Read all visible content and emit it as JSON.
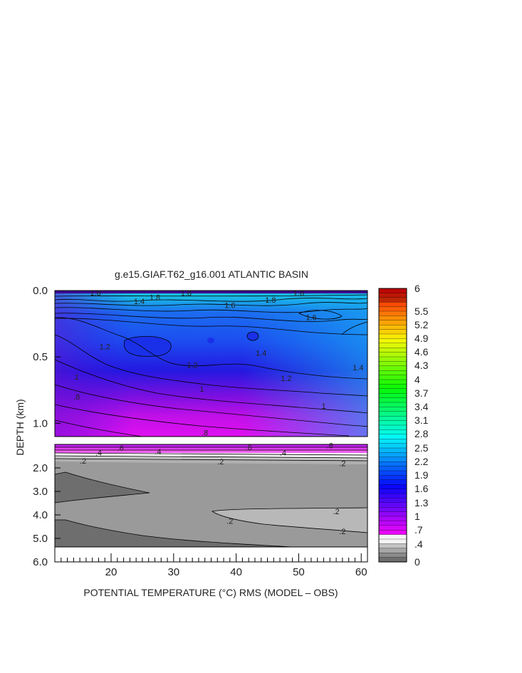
{
  "chart_data": {
    "type": "heatmap",
    "title": "g.e15.GIAF.T62_g16.001 ATLANTIC BASIN",
    "xlabel": "POTENTIAL TEMPERATURE (°C) RMS (MODEL – OBS)",
    "ylabel": "DEPTH (km)",
    "x_ticks": [
      20,
      30,
      40,
      50,
      60
    ],
    "xlim": [
      11,
      61
    ],
    "upper_panel": {
      "ylim": [
        0.0,
        1.1
      ],
      "y_ticks": [
        "0.0",
        "0.5",
        "1.0"
      ],
      "contour_labels": [
        {
          "text": "1.8",
          "x": 17.5,
          "y": 0.015
        },
        {
          "text": "1.8",
          "x": 32,
          "y": 0.02
        },
        {
          "text": "1.6",
          "x": 50,
          "y": 0.02
        },
        {
          "text": "1.8",
          "x": 27,
          "y": 0.05
        },
        {
          "text": "1.8",
          "x": 45.5,
          "y": 0.07
        },
        {
          "text": "1.4",
          "x": 24.5,
          "y": 0.08
        },
        {
          "text": "1.6",
          "x": 39,
          "y": 0.11
        },
        {
          "text": "1.6",
          "x": 52,
          "y": 0.2
        },
        {
          "text": "1.2",
          "x": 19,
          "y": 0.42
        },
        {
          "text": "1.4",
          "x": 44,
          "y": 0.47
        },
        {
          "text": "1.2",
          "x": 33,
          "y": 0.56
        },
        {
          "text": "1.4",
          "x": 59.5,
          "y": 0.58
        },
        {
          "text": "1.2",
          "x": 48,
          "y": 0.66
        },
        {
          "text": "1",
          "x": 14.5,
          "y": 0.65
        },
        {
          "text": "1",
          "x": 34.5,
          "y": 0.74
        },
        {
          "text": "1",
          "x": 54,
          "y": 0.87
        },
        {
          "text": ".8",
          "x": 14.5,
          "y": 0.8
        },
        {
          "text": ".8",
          "x": 35,
          "y": 1.07
        }
      ]
    },
    "lower_panel": {
      "ylim": [
        1.0,
        6.0
      ],
      "y_ticks": [
        "2.0",
        "3.0",
        "4.0",
        "5.0",
        "6.0"
      ],
      "contour_labels": [
        {
          "text": ".6",
          "x": 21.5,
          "y": 1.15
        },
        {
          "text": ".6",
          "x": 42,
          "y": 1.12
        },
        {
          "text": ".6",
          "x": 55,
          "y": 1.05
        },
        {
          "text": ".4",
          "x": 18,
          "y": 1.35
        },
        {
          "text": ".4",
          "x": 27.5,
          "y": 1.3
        },
        {
          "text": ".4",
          "x": 47.5,
          "y": 1.35
        },
        {
          "text": ".2",
          "x": 15.5,
          "y": 1.7
        },
        {
          "text": ".2",
          "x": 37.5,
          "y": 1.72
        },
        {
          "text": ".2",
          "x": 57,
          "y": 1.8
        },
        {
          "text": ".2",
          "x": 56,
          "y": 3.85
        },
        {
          "text": ".2",
          "x": 39,
          "y": 4.25
        },
        {
          "text": ".2",
          "x": 57,
          "y": 4.7
        }
      ]
    },
    "colorbar": {
      "labels": [
        "6",
        "5.5",
        "5.2",
        "4.9",
        "4.6",
        "4.3",
        "4",
        "3.7",
        "3.4",
        "3.1",
        "2.8",
        "2.5",
        "2.2",
        "1.9",
        "1.6",
        "1.3",
        "1",
        ".7",
        ".4",
        "0"
      ]
    }
  }
}
